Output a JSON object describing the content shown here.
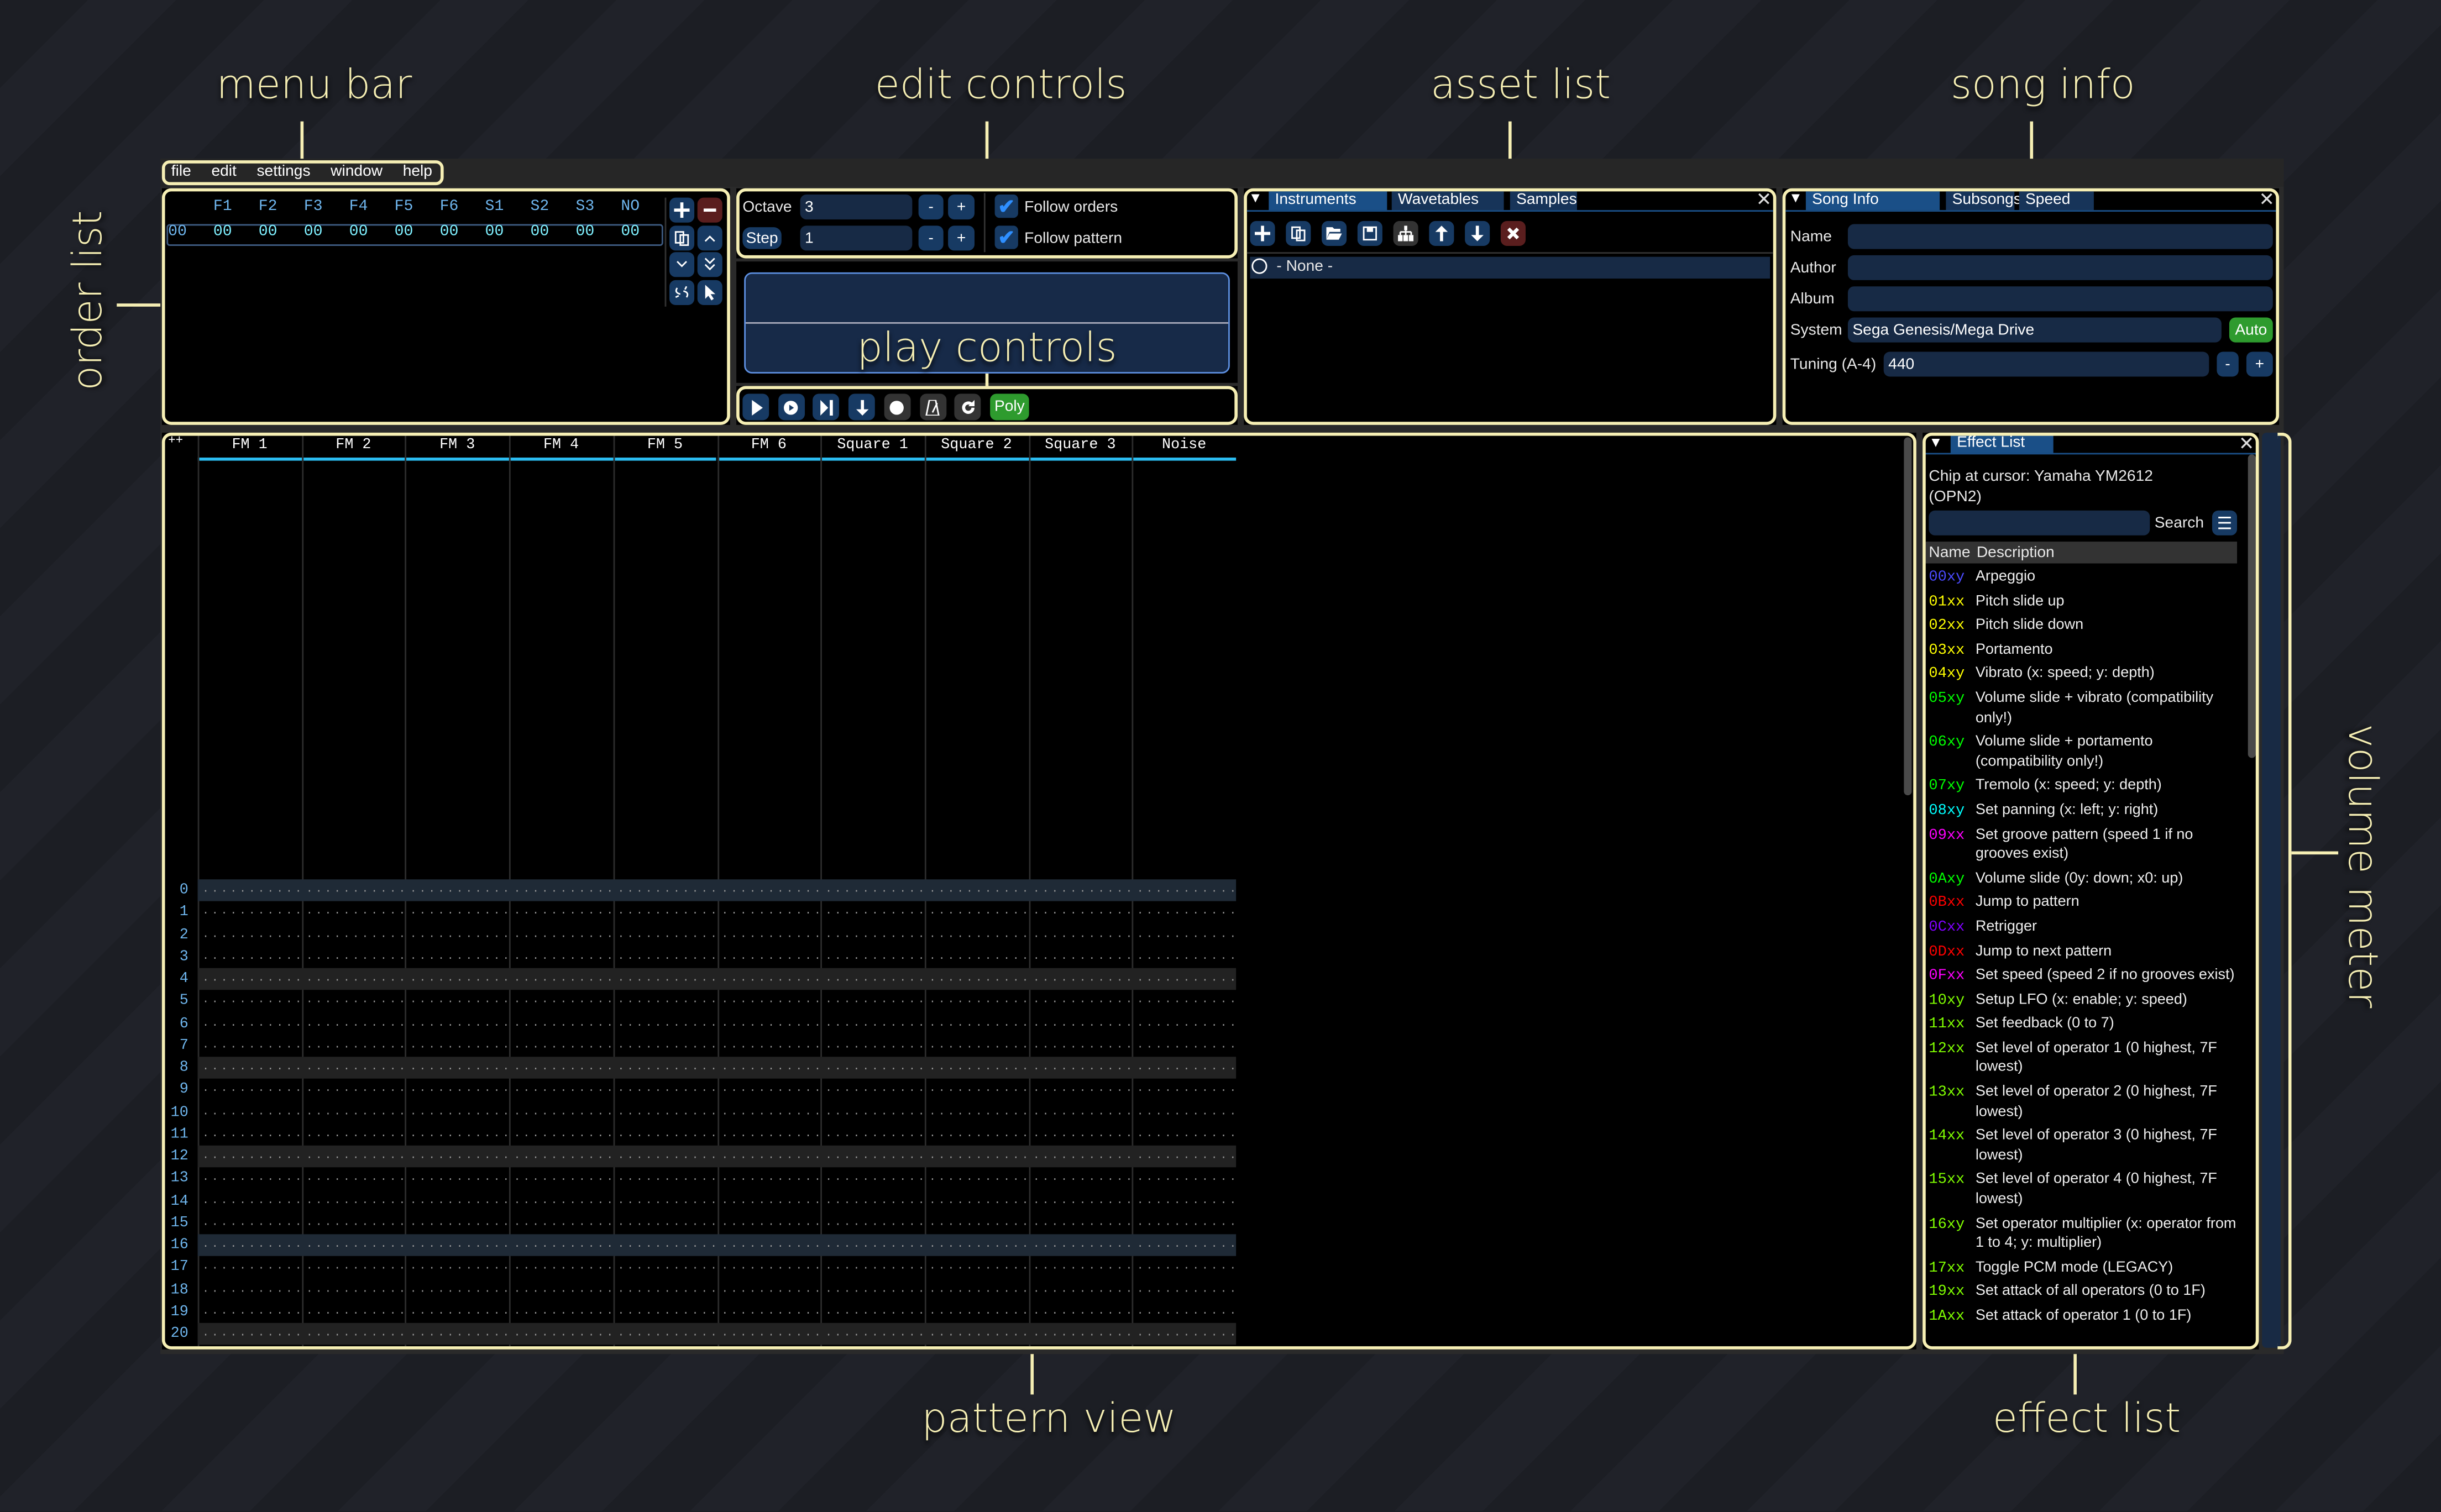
{
  "annotations": {
    "menu_bar": "menu bar",
    "edit_controls": "edit controls",
    "asset_list": "asset list",
    "song_info": "song info",
    "order_list": "order list",
    "play_controls": "play controls",
    "pattern_view": "pattern view",
    "effect_list": "effect list",
    "volume_meter": "volume meter"
  },
  "menu": [
    "file",
    "edit",
    "settings",
    "window",
    "help"
  ],
  "order_list": {
    "channels": [
      "F1",
      "F2",
      "F3",
      "F4",
      "F5",
      "F6",
      "S1",
      "S2",
      "S3",
      "NO"
    ],
    "rows": [
      {
        "index": "00",
        "values": [
          "00",
          "00",
          "00",
          "00",
          "00",
          "00",
          "00",
          "00",
          "00",
          "00"
        ]
      }
    ],
    "buttons": [
      "plus-icon",
      "minus-icon",
      "duplicate-icon",
      "chevron-up-icon",
      "chevron-down-icon",
      "double-chevron-down-icon",
      "unlink-icon",
      "cursor-icon"
    ]
  },
  "edit_controls": {
    "octave_label": "Octave",
    "octave_value": "3",
    "step_label": "Step",
    "step_value": "1",
    "minus": "-",
    "plus": "+",
    "follow_orders": "Follow orders",
    "follow_orders_checked": true,
    "follow_pattern": "Follow pattern",
    "follow_pattern_checked": true
  },
  "play_controls": {
    "buttons": [
      "play-icon",
      "play-pattern-icon",
      "step-icon",
      "step-one-row-icon",
      "record-icon",
      "metronome-icon",
      "repeat-icon"
    ],
    "poly_label": "Poly"
  },
  "asset_list": {
    "tabs": [
      "Instruments",
      "Wavetables",
      "Samples"
    ],
    "active_tab": 0,
    "toolbar": [
      "plus-icon",
      "duplicate-icon",
      "open-folder-icon",
      "save-icon",
      "hierarchy-icon",
      "arrow-up-icon",
      "arrow-down-icon",
      "delete-icon"
    ],
    "items": [
      "- None -"
    ]
  },
  "song_info": {
    "tabs": [
      "Song Info",
      "Subsongs",
      "Speed"
    ],
    "active_tab": 0,
    "name_label": "Name",
    "name_value": "",
    "author_label": "Author",
    "author_value": "",
    "album_label": "Album",
    "album_value": "",
    "system_label": "System",
    "system_value": "Sega Genesis/Mega Drive",
    "auto_label": "Auto",
    "tuning_label": "Tuning (A-4)",
    "tuning_value": "440",
    "minus": "-",
    "plus": "+"
  },
  "pattern_view": {
    "corner": "++",
    "channels": [
      "FM 1",
      "FM 2",
      "FM 3",
      "FM 4",
      "FM 5",
      "FM 6",
      "Square 1",
      "Square 2",
      "Square 3",
      "Noise"
    ],
    "rows": [
      "0",
      "1",
      "2",
      "3",
      "4",
      "5",
      "6",
      "7",
      "8",
      "9",
      "10",
      "11",
      "12",
      "13",
      "14",
      "15",
      "16",
      "17",
      "18",
      "19",
      "20"
    ],
    "empty_cell": "...........",
    "bar_highlight_rows": [
      0,
      16
    ],
    "beat_highlight_rows": [
      4,
      8,
      12,
      20
    ]
  },
  "effect_list": {
    "title": "Effect List",
    "chip_text": "Chip at cursor: Yamaha YM2612 (OPN2)",
    "search_value": "",
    "search_label": "Search",
    "col_name": "Name",
    "col_desc": "Description",
    "effects": [
      {
        "code": "00xy",
        "desc": "Arpeggio",
        "color": "#4b4bff"
      },
      {
        "code": "01xx",
        "desc": "Pitch slide up",
        "color": "#ffff00"
      },
      {
        "code": "02xx",
        "desc": "Pitch slide down",
        "color": "#ffff00"
      },
      {
        "code": "03xx",
        "desc": "Portamento",
        "color": "#ffff00"
      },
      {
        "code": "04xy",
        "desc": "Vibrato (x: speed; y: depth)",
        "color": "#ffff00"
      },
      {
        "code": "05xy",
        "desc": "Volume slide + vibrato (compatibility only!)",
        "color": "#00ff00"
      },
      {
        "code": "06xy",
        "desc": "Volume slide + portamento (compatibility only!)",
        "color": "#00ff00"
      },
      {
        "code": "07xy",
        "desc": "Tremolo (x: speed; y: depth)",
        "color": "#00ff00"
      },
      {
        "code": "08xy",
        "desc": "Set panning (x: left; y: right)",
        "color": "#00ffff"
      },
      {
        "code": "09xx",
        "desc": "Set groove pattern (speed 1 if no grooves exist)",
        "color": "#ff00ff"
      },
      {
        "code": "0Axy",
        "desc": "Volume slide (0y: down; x0: up)",
        "color": "#00ff00"
      },
      {
        "code": "0Bxx",
        "desc": "Jump to pattern",
        "color": "#ff0000"
      },
      {
        "code": "0Cxx",
        "desc": "Retrigger",
        "color": "#8000ff"
      },
      {
        "code": "0Dxx",
        "desc": "Jump to next pattern",
        "color": "#ff0000"
      },
      {
        "code": "0Fxx",
        "desc": "Set speed (speed 2 if no grooves exist)",
        "color": "#ff00ff"
      },
      {
        "code": "10xy",
        "desc": "Setup LFO (x: enable; y: speed)",
        "color": "#80ff00"
      },
      {
        "code": "11xx",
        "desc": "Set feedback (0 to 7)",
        "color": "#80ff00"
      },
      {
        "code": "12xx",
        "desc": "Set level of operator 1 (0 highest, 7F lowest)",
        "color": "#80ff00"
      },
      {
        "code": "13xx",
        "desc": "Set level of operator 2 (0 highest, 7F lowest)",
        "color": "#80ff00"
      },
      {
        "code": "14xx",
        "desc": "Set level of operator 3 (0 highest, 7F lowest)",
        "color": "#80ff00"
      },
      {
        "code": "15xx",
        "desc": "Set level of operator 4 (0 highest, 7F lowest)",
        "color": "#80ff00"
      },
      {
        "code": "16xy",
        "desc": "Set operator multiplier (x: operator from 1 to 4; y: multiplier)",
        "color": "#80ff00"
      },
      {
        "code": "17xx",
        "desc": "Toggle PCM mode (LEGACY)",
        "color": "#80ff00"
      },
      {
        "code": "19xx",
        "desc": "Set attack of all operators (0 to 1F)",
        "color": "#80ff00"
      },
      {
        "code": "1Axx",
        "desc": "Set attack of operator 1 (0 to 1F)",
        "color": "#80ff00"
      }
    ]
  },
  "colors": {
    "accent": "#1a4f87",
    "button": "#173a63",
    "field": "#172a45",
    "annotation": "#f6efb4",
    "green": "#2e9b2e",
    "danger": "#5a1e1e",
    "channel_header_line": "#2bbcf0",
    "row_number": "#6fb6ee"
  }
}
